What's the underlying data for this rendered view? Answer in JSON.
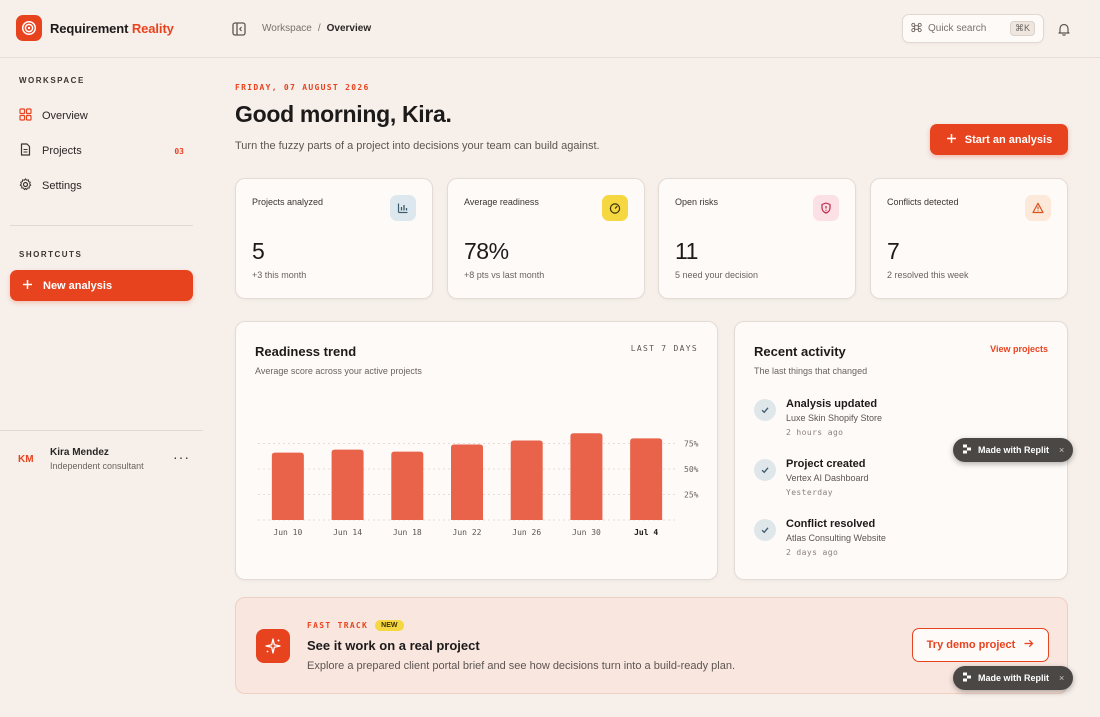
{
  "brand": {
    "name_main": "Requirement ",
    "name_accent": "Reality"
  },
  "breadcrumb": {
    "root": "Workspace",
    "separator": "/",
    "current": "Overview"
  },
  "search": {
    "label": "Quick search",
    "shortcut": "⌘K"
  },
  "sidebar": {
    "workspace_label": "WORKSPACE",
    "items": [
      {
        "label": "Overview",
        "icon": "grid-icon"
      },
      {
        "label": "Projects",
        "icon": "document-icon",
        "badge": "03"
      },
      {
        "label": "Settings",
        "icon": "gear-icon"
      }
    ],
    "shortcuts_label": "SHORTCUTS",
    "new_analysis_label": "New analysis",
    "user": {
      "initials": "KM",
      "name": "Kira Mendez",
      "role": "Independent consultant",
      "more": "···"
    }
  },
  "main": {
    "date": "FRIDAY, 07 AUGUST 2026",
    "greeting": "Good morning, Kira.",
    "subtitle": "Turn the fuzzy parts of a project into decisions your team can build against.",
    "start_button": "Start an analysis"
  },
  "stats": [
    {
      "label": "Projects analyzed",
      "value": "5",
      "note": "+3 this month",
      "icon": "bar-chart-icon",
      "icon_bg": "#dde8ee"
    },
    {
      "label": "Average readiness",
      "value": "78%",
      "note": "+8 pts vs last month",
      "icon": "gauge-icon",
      "icon_bg": "#f5d742"
    },
    {
      "label": "Open risks",
      "value": "11",
      "note": "5 need your decision",
      "icon": "shield-alert-icon",
      "icon_bg": "#fbe0e6"
    },
    {
      "label": "Conflicts detected",
      "value": "7",
      "note": "2 resolved this week",
      "icon": "warning-icon",
      "icon_bg": "#fde9d9"
    }
  ],
  "trend": {
    "title": "Readiness trend",
    "subtitle": "Average score across your active projects",
    "range": "LAST 7 DAYS"
  },
  "chart_data": {
    "type": "bar",
    "categories": [
      "Jun 10",
      "Jun 14",
      "Jun 18",
      "Jun 22",
      "Jun 26",
      "Jun 30",
      "Jul 4"
    ],
    "values": [
      66,
      69,
      67,
      74,
      78,
      85,
      80
    ],
    "highlight_category": "Jul 4",
    "yticks": [
      "75%",
      "50%",
      "25%"
    ],
    "ytick_values": [
      75,
      50,
      25
    ],
    "ylim": [
      0,
      100
    ],
    "bar_color": "#e8634a",
    "grid": true
  },
  "activity": {
    "title": "Recent activity",
    "subtitle": "The last things that changed",
    "link": "View projects",
    "items": [
      {
        "title": "Analysis updated",
        "desc": "Luxe Skin Shopify Store",
        "time": "2 hours ago"
      },
      {
        "title": "Project created",
        "desc": "Vertex AI Dashboard",
        "time": "Yesterday"
      },
      {
        "title": "Conflict resolved",
        "desc": "Atlas Consulting Website",
        "time": "2 days ago"
      }
    ]
  },
  "fast_track": {
    "tag": "FAST TRACK",
    "badge": "NEW",
    "title": "See it work on a real project",
    "desc": "Explore a prepared client portal brief and see how decisions turn into a build-ready plan.",
    "button": "Try demo project"
  },
  "replit_badge": {
    "label": "Made with Replit",
    "close": "×"
  },
  "colors": {
    "accent": "#e8431f",
    "background": "#f6efea",
    "card": "#fdfaf8"
  }
}
